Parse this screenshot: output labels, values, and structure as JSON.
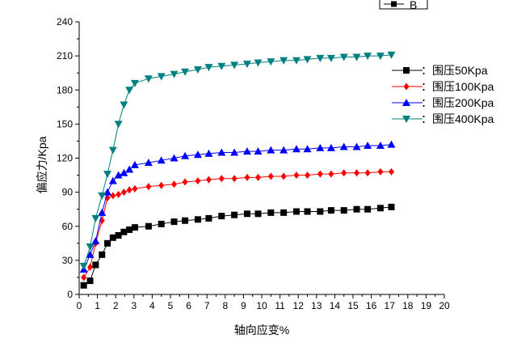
{
  "chart_data": {
    "type": "line",
    "xlabel": "轴向应变%",
    "ylabel": "偏应力/Kpa",
    "xlim": [
      0,
      20
    ],
    "ylim": [
      0,
      240
    ],
    "x_ticks": [
      0,
      1,
      2,
      3,
      4,
      5,
      6,
      7,
      8,
      9,
      10,
      11,
      12,
      13,
      14,
      15,
      16,
      17,
      18,
      19,
      20
    ],
    "y_ticks": [
      0,
      30,
      60,
      90,
      120,
      150,
      180,
      210,
      240
    ],
    "grid": false,
    "legend_position": "right",
    "top_legend_label": "B",
    "series": [
      {
        "name": "：围压50Kpa",
        "color": "#000000",
        "marker": "square",
        "points": [
          [
            0.25,
            8
          ],
          [
            0.6,
            12
          ],
          [
            0.9,
            26
          ],
          [
            1.25,
            35
          ],
          [
            1.55,
            45
          ],
          [
            1.85,
            50
          ],
          [
            2.15,
            52
          ],
          [
            2.45,
            55
          ],
          [
            2.75,
            57
          ],
          [
            3.05,
            59
          ],
          [
            3.8,
            60
          ],
          [
            4.5,
            62
          ],
          [
            5.2,
            64
          ],
          [
            5.8,
            65
          ],
          [
            6.5,
            66
          ],
          [
            7.1,
            67
          ],
          [
            7.8,
            69
          ],
          [
            8.5,
            70
          ],
          [
            9.2,
            71
          ],
          [
            9.8,
            71
          ],
          [
            10.5,
            72
          ],
          [
            11.2,
            72
          ],
          [
            11.9,
            73
          ],
          [
            12.5,
            73
          ],
          [
            13.2,
            73
          ],
          [
            13.8,
            74
          ],
          [
            14.5,
            74
          ],
          [
            15.2,
            75
          ],
          [
            15.8,
            75
          ],
          [
            16.5,
            76
          ],
          [
            17.1,
            77
          ]
        ]
      },
      {
        "name": "：围压100Kpa",
        "color": "#ff0000",
        "marker": "diamond",
        "points": [
          [
            0.25,
            15
          ],
          [
            0.6,
            24
          ],
          [
            0.9,
            45
          ],
          [
            1.25,
            65
          ],
          [
            1.55,
            85
          ],
          [
            1.85,
            87
          ],
          [
            2.15,
            88
          ],
          [
            2.45,
            90
          ],
          [
            2.75,
            92
          ],
          [
            3.05,
            93
          ],
          [
            3.8,
            95
          ],
          [
            4.5,
            96
          ],
          [
            5.2,
            97
          ],
          [
            5.8,
            99
          ],
          [
            6.5,
            100
          ],
          [
            7.1,
            101
          ],
          [
            7.8,
            102
          ],
          [
            8.5,
            102
          ],
          [
            9.2,
            103
          ],
          [
            9.8,
            103
          ],
          [
            10.5,
            104
          ],
          [
            11.2,
            104
          ],
          [
            11.9,
            105
          ],
          [
            12.5,
            105
          ],
          [
            13.2,
            106
          ],
          [
            13.8,
            106
          ],
          [
            14.5,
            107
          ],
          [
            15.2,
            107
          ],
          [
            15.8,
            107
          ],
          [
            16.5,
            108
          ],
          [
            17.1,
            108
          ]
        ]
      },
      {
        "name": "：围压200Kpa",
        "color": "#0000ff",
        "marker": "triangle-up",
        "points": [
          [
            0.25,
            22
          ],
          [
            0.6,
            35
          ],
          [
            0.9,
            47
          ],
          [
            1.25,
            72
          ],
          [
            1.55,
            90
          ],
          [
            1.85,
            100
          ],
          [
            2.15,
            105
          ],
          [
            2.45,
            107
          ],
          [
            2.75,
            110
          ],
          [
            3.05,
            114
          ],
          [
            3.8,
            116
          ],
          [
            4.5,
            118
          ],
          [
            5.2,
            120
          ],
          [
            5.8,
            122
          ],
          [
            6.5,
            123
          ],
          [
            7.1,
            124
          ],
          [
            7.8,
            125
          ],
          [
            8.5,
            125
          ],
          [
            9.2,
            126
          ],
          [
            9.8,
            126
          ],
          [
            10.5,
            127
          ],
          [
            11.2,
            127
          ],
          [
            11.9,
            128
          ],
          [
            12.5,
            128
          ],
          [
            13.2,
            129
          ],
          [
            13.8,
            129
          ],
          [
            14.5,
            130
          ],
          [
            15.2,
            130
          ],
          [
            15.8,
            131
          ],
          [
            16.5,
            131
          ],
          [
            17.1,
            132
          ]
        ]
      },
      {
        "name": "：围压400Kpa",
        "color": "#008080",
        "marker": "triangle-down",
        "points": [
          [
            0.25,
            25
          ],
          [
            0.6,
            42
          ],
          [
            0.9,
            67
          ],
          [
            1.25,
            87
          ],
          [
            1.55,
            106
          ],
          [
            1.85,
            127
          ],
          [
            2.15,
            150
          ],
          [
            2.45,
            167
          ],
          [
            2.75,
            180
          ],
          [
            3.05,
            186
          ],
          [
            3.8,
            190
          ],
          [
            4.5,
            192
          ],
          [
            5.2,
            194
          ],
          [
            5.8,
            196
          ],
          [
            6.5,
            198
          ],
          [
            7.1,
            200
          ],
          [
            7.8,
            201
          ],
          [
            8.5,
            202
          ],
          [
            9.2,
            203
          ],
          [
            9.8,
            204
          ],
          [
            10.5,
            205
          ],
          [
            11.2,
            206
          ],
          [
            11.9,
            206
          ],
          [
            12.5,
            207
          ],
          [
            13.2,
            208
          ],
          [
            13.8,
            208
          ],
          [
            14.5,
            209
          ],
          [
            15.2,
            209
          ],
          [
            15.8,
            210
          ],
          [
            16.5,
            210
          ],
          [
            17.1,
            211
          ]
        ]
      }
    ]
  }
}
